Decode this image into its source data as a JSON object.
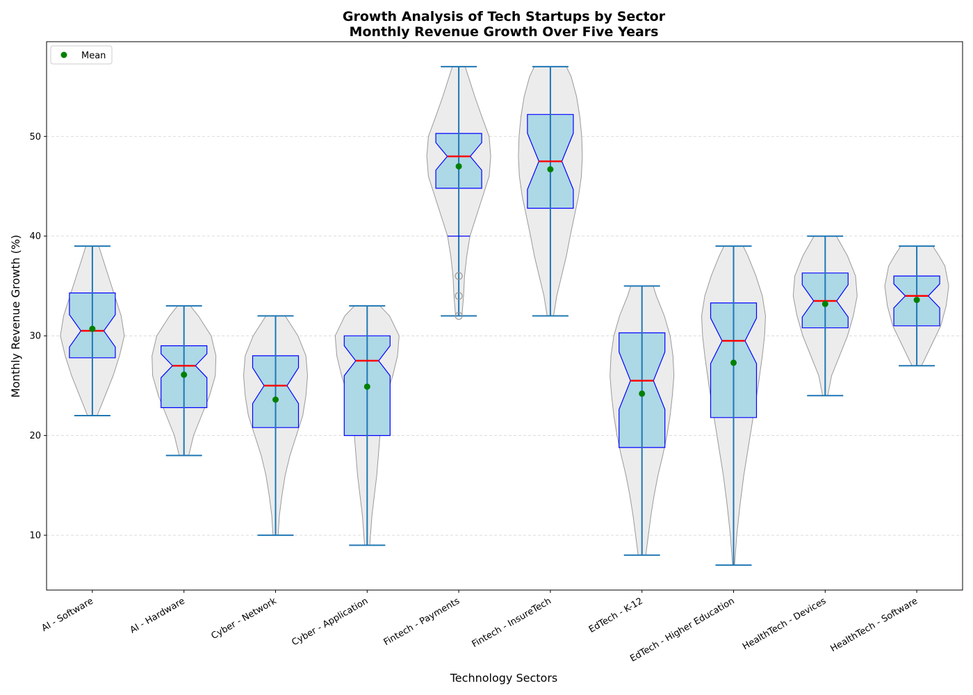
{
  "chart_data": {
    "type": "violin+box",
    "title": "Growth Analysis of Tech Startups by Sector",
    "subtitle": "Monthly Revenue Growth Over Five Years",
    "xlabel": "Technology Sectors",
    "ylabel": "Monthly Revenue Growth (%)",
    "ylim": [
      4.5,
      59.5
    ],
    "yticks": [
      10,
      20,
      30,
      40,
      50
    ],
    "grid": "y-dashed",
    "legend": {
      "placement": "top-left",
      "entries": [
        {
          "label": "Mean",
          "color": "#008000"
        }
      ]
    },
    "colors": {
      "violin_fill": "#ececec",
      "violin_edge": "#999999",
      "box_fill": "#add8e6",
      "box_edge": "#0000ff",
      "median": "#ff0000",
      "whisker": "#1f77b4",
      "mean": "#008000",
      "outlier": "#999999"
    },
    "categories": [
      "AI - Software",
      "AI - Hardware",
      "Cyber - Network",
      "Cyber - Application",
      "Fintech - Payments",
      "Fintech - InsureTech",
      "EdTech - K-12",
      "EdTech - Higher Education",
      "HealthTech - Devices",
      "HealthTech - Software"
    ],
    "series": [
      {
        "category": "AI - Software",
        "min": 22,
        "q1": 27.8,
        "median": 30.5,
        "q3": 34.3,
        "max": 39,
        "whisker_low": 22,
        "whisker_high": 39,
        "mean": 30.7,
        "outliers": [],
        "density": [
          [
            22,
            0.15
          ],
          [
            24,
            0.4
          ],
          [
            26,
            0.65
          ],
          [
            28,
            0.85
          ],
          [
            30,
            1.0
          ],
          [
            32,
            0.9
          ],
          [
            34,
            0.7
          ],
          [
            36,
            0.5
          ],
          [
            38,
            0.3
          ],
          [
            39,
            0.2
          ]
        ]
      },
      {
        "category": "AI - Hardware",
        "min": 18,
        "q1": 22.8,
        "median": 27,
        "q3": 29,
        "max": 33,
        "whisker_low": 18,
        "whisker_high": 33,
        "mean": 26.1,
        "outliers": [],
        "density": [
          [
            18,
            0.15
          ],
          [
            20,
            0.3
          ],
          [
            22,
            0.55
          ],
          [
            24,
            0.8
          ],
          [
            26,
            0.98
          ],
          [
            28,
            1.0
          ],
          [
            30,
            0.85
          ],
          [
            32,
            0.45
          ],
          [
            33,
            0.2
          ]
        ]
      },
      {
        "category": "Cyber - Network",
        "min": 10,
        "q1": 20.8,
        "median": 25,
        "q3": 28,
        "max": 32,
        "whisker_low": 10,
        "whisker_high": 32,
        "mean": 23.6,
        "outliers": [],
        "density": [
          [
            10,
            0.08
          ],
          [
            12,
            0.12
          ],
          [
            14,
            0.2
          ],
          [
            16,
            0.3
          ],
          [
            18,
            0.45
          ],
          [
            20,
            0.65
          ],
          [
            22,
            0.85
          ],
          [
            24,
            0.95
          ],
          [
            26,
            1.0
          ],
          [
            28,
            0.95
          ],
          [
            30,
            0.7
          ],
          [
            32,
            0.3
          ]
        ]
      },
      {
        "category": "Cyber - Application",
        "min": 9,
        "q1": 20,
        "median": 27.5,
        "q3": 30,
        "max": 33,
        "whisker_low": 9,
        "whisker_high": 33,
        "mean": 24.9,
        "outliers": [],
        "density": [
          [
            9,
            0.08
          ],
          [
            12,
            0.15
          ],
          [
            16,
            0.3
          ],
          [
            20,
            0.4
          ],
          [
            22,
            0.45
          ],
          [
            24,
            0.6
          ],
          [
            26,
            0.8
          ],
          [
            28,
            0.95
          ],
          [
            30,
            1.0
          ],
          [
            32,
            0.7
          ],
          [
            33,
            0.4
          ]
        ]
      },
      {
        "category": "Fintech - Payments",
        "min": 32,
        "q1": 44.8,
        "median": 48,
        "q3": 50.3,
        "max": 57,
        "whisker_low": 40,
        "whisker_high": 57,
        "mean": 47,
        "outliers": [
          32,
          34,
          36
        ],
        "density": [
          [
            32,
            0.1
          ],
          [
            34,
            0.15
          ],
          [
            36,
            0.18
          ],
          [
            38,
            0.25
          ],
          [
            40,
            0.35
          ],
          [
            42,
            0.55
          ],
          [
            44,
            0.75
          ],
          [
            46,
            0.95
          ],
          [
            48,
            1.0
          ],
          [
            50,
            0.95
          ],
          [
            52,
            0.72
          ],
          [
            54,
            0.5
          ],
          [
            56,
            0.3
          ],
          [
            57,
            0.2
          ]
        ]
      },
      {
        "category": "Fintech - InsureTech",
        "min": 32,
        "q1": 42.8,
        "median": 47.5,
        "q3": 52.2,
        "max": 57,
        "whisker_low": 32,
        "whisker_high": 57,
        "mean": 46.7,
        "outliers": [],
        "density": [
          [
            32,
            0.1
          ],
          [
            34,
            0.2
          ],
          [
            36,
            0.35
          ],
          [
            38,
            0.5
          ],
          [
            40,
            0.62
          ],
          [
            42,
            0.75
          ],
          [
            44,
            0.88
          ],
          [
            46,
            0.97
          ],
          [
            48,
            1.0
          ],
          [
            50,
            0.98
          ],
          [
            52,
            0.92
          ],
          [
            54,
            0.82
          ],
          [
            56,
            0.65
          ],
          [
            57,
            0.5
          ]
        ]
      },
      {
        "category": "EdTech - K-12",
        "min": 8,
        "q1": 18.8,
        "median": 25.5,
        "q3": 30.3,
        "max": 35,
        "whisker_low": 8,
        "whisker_high": 35,
        "mean": 24.2,
        "outliers": [],
        "density": [
          [
            8,
            0.12
          ],
          [
            10,
            0.2
          ],
          [
            12,
            0.28
          ],
          [
            14,
            0.38
          ],
          [
            16,
            0.5
          ],
          [
            18,
            0.65
          ],
          [
            20,
            0.78
          ],
          [
            22,
            0.88
          ],
          [
            24,
            0.95
          ],
          [
            26,
            1.0
          ],
          [
            28,
            0.97
          ],
          [
            30,
            0.88
          ],
          [
            32,
            0.7
          ],
          [
            34,
            0.45
          ],
          [
            35,
            0.35
          ]
        ]
      },
      {
        "category": "EdTech - Higher Education",
        "min": 7,
        "q1": 21.8,
        "median": 29.5,
        "q3": 33.3,
        "max": 39,
        "whisker_low": 7,
        "whisker_high": 39,
        "mean": 27.3,
        "outliers": [],
        "density": [
          [
            7,
            0.03
          ],
          [
            10,
            0.1
          ],
          [
            13,
            0.2
          ],
          [
            16,
            0.32
          ],
          [
            19,
            0.47
          ],
          [
            22,
            0.62
          ],
          [
            25,
            0.77
          ],
          [
            28,
            0.9
          ],
          [
            30,
            0.97
          ],
          [
            32,
            1.0
          ],
          [
            34,
            0.9
          ],
          [
            36,
            0.7
          ],
          [
            38,
            0.45
          ],
          [
            39,
            0.3
          ]
        ]
      },
      {
        "category": "HealthTech - Devices",
        "min": 24,
        "q1": 30.8,
        "median": 33.5,
        "q3": 36.3,
        "max": 40,
        "whisker_low": 24,
        "whisker_high": 40,
        "mean": 33.2,
        "outliers": [],
        "density": [
          [
            24,
            0.08
          ],
          [
            26,
            0.2
          ],
          [
            28,
            0.45
          ],
          [
            30,
            0.7
          ],
          [
            32,
            0.88
          ],
          [
            34,
            1.0
          ],
          [
            36,
            0.95
          ],
          [
            38,
            0.7
          ],
          [
            40,
            0.35
          ]
        ]
      },
      {
        "category": "HealthTech - Software",
        "min": 27,
        "q1": 31,
        "median": 34,
        "q3": 36,
        "max": 39,
        "whisker_low": 27,
        "whisker_high": 39,
        "mean": 33.6,
        "outliers": [],
        "density": [
          [
            27,
            0.15
          ],
          [
            29,
            0.45
          ],
          [
            31,
            0.75
          ],
          [
            33,
            0.92
          ],
          [
            35,
            1.0
          ],
          [
            37,
            0.88
          ],
          [
            38,
            0.7
          ],
          [
            39,
            0.5
          ]
        ]
      }
    ]
  }
}
